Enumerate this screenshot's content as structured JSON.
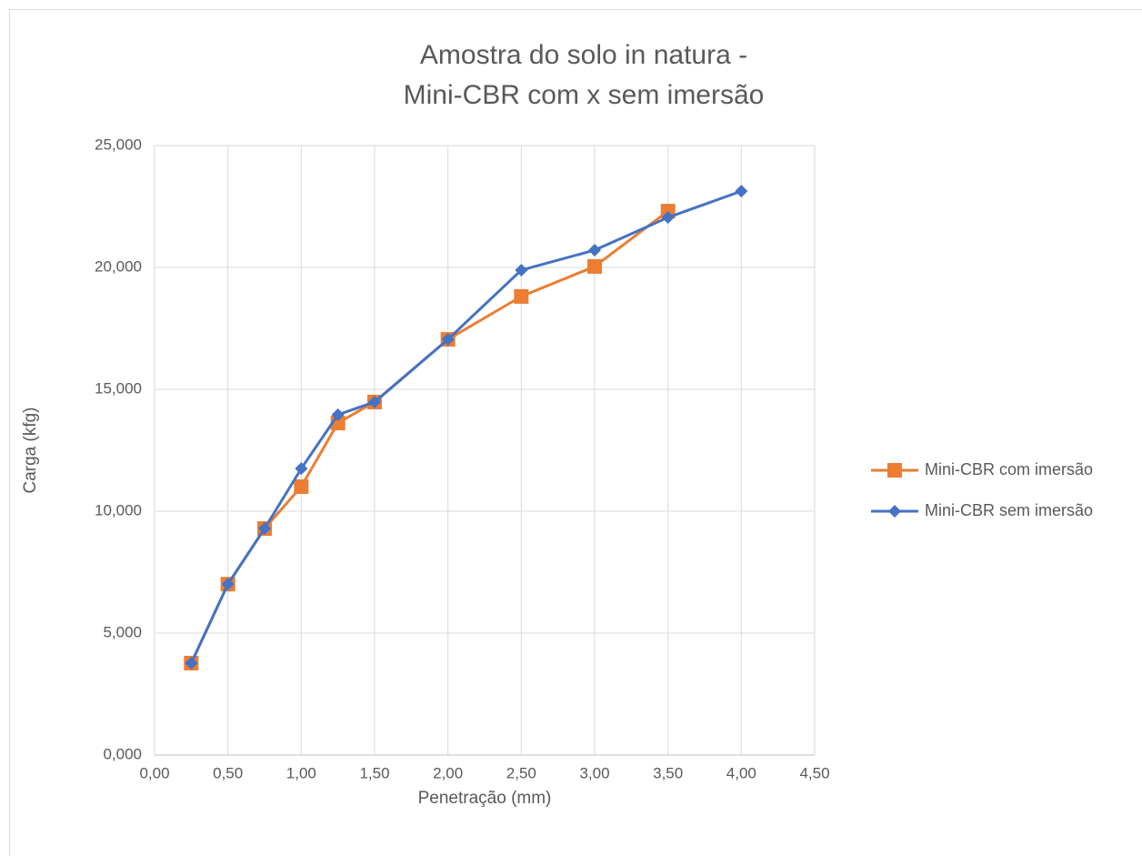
{
  "chart_data": {
    "type": "line",
    "title": [
      "Amostra do solo in natura -",
      "Mini-CBR com x sem imersão"
    ],
    "x_label": "Penetração (mm)",
    "y_label": "Carga (kfg)",
    "xlim": [
      0,
      4.5
    ],
    "xticks": [
      {
        "value": 0,
        "label": "0,00"
      },
      {
        "value": 0.5,
        "label": "0,50"
      },
      {
        "value": 1,
        "label": "1,00"
      },
      {
        "value": 1.5,
        "label": "1,50"
      },
      {
        "value": 2,
        "label": "2,00"
      },
      {
        "value": 2.5,
        "label": "2,50"
      },
      {
        "value": 3,
        "label": "3,00"
      },
      {
        "value": 3.5,
        "label": "3,50"
      },
      {
        "value": 4,
        "label": "4,00"
      },
      {
        "value": 4.5,
        "label": "4,50"
      }
    ],
    "ylim": [
      0,
      25
    ],
    "yticks": [
      {
        "value": 0,
        "label": "0,000"
      },
      {
        "value": 5,
        "label": "5,000"
      },
      {
        "value": 10,
        "label": "10,000"
      },
      {
        "value": 15,
        "label": "15,000"
      },
      {
        "value": 20,
        "label": "20,000"
      },
      {
        "value": 25,
        "label": "25,000"
      }
    ],
    "grid": true,
    "legend": "right",
    "series": [
      {
        "name": "Mini-CBR com imersão",
        "color": "#ed7d31",
        "marker": "square",
        "x": [
          0.25,
          0.5,
          0.75,
          1,
          1.25,
          1.5,
          2,
          2.5,
          3,
          3.5
        ],
        "values": [
          3.77,
          7.01,
          9.29,
          11.01,
          13.62,
          14.48,
          17.05,
          18.81,
          20.04,
          22.31
        ]
      },
      {
        "name": "Mini-CBR sem imersão",
        "color": "#4472c4",
        "marker": "diamond",
        "x": [
          0.25,
          0.5,
          0.75,
          1,
          1.25,
          1.5,
          2,
          2.5,
          3,
          3.5,
          4
        ],
        "values": [
          3.77,
          7.01,
          9.29,
          11.75,
          13.96,
          14.48,
          17.05,
          19.89,
          20.71,
          22.05,
          23.13
        ]
      }
    ]
  }
}
